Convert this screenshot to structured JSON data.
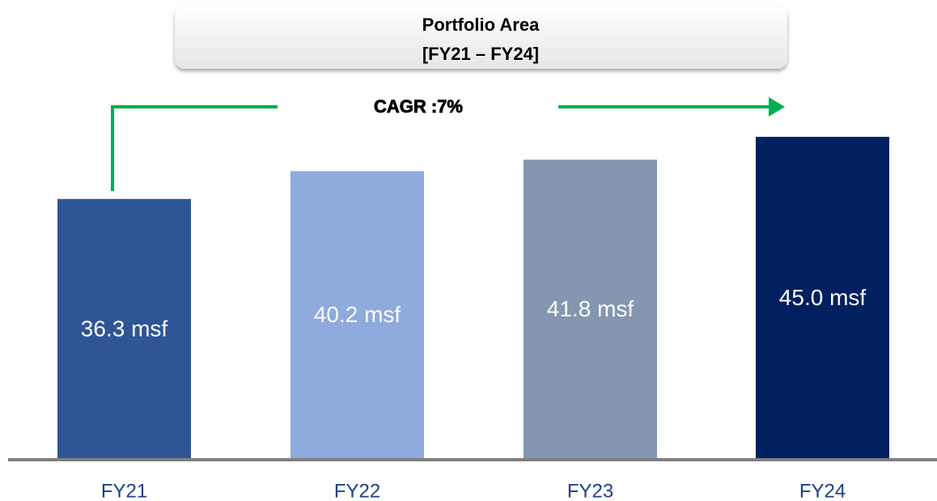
{
  "chart_data": {
    "type": "bar",
    "title": "Portfolio Area",
    "subtitle": "[FY21 – FY24]",
    "annotation": "CAGR :7%",
    "categories": [
      "FY21",
      "FY22",
      "FY23",
      "FY24"
    ],
    "values": [
      36.3,
      40.2,
      41.8,
      45.0
    ],
    "value_labels": [
      "36.3 msf",
      "40.2 msf",
      "41.8 msf",
      "45.0 msf"
    ],
    "colors": [
      "#2f5597",
      "#8faadc",
      "#8497b0",
      "#002060"
    ]
  }
}
